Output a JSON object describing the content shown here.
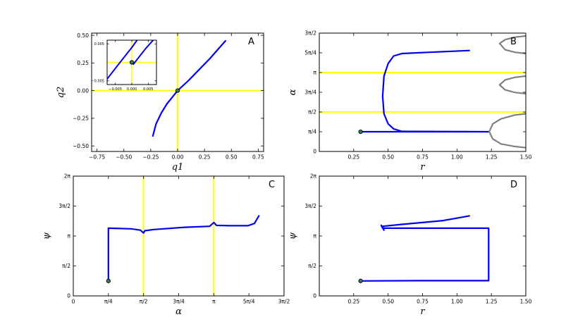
{
  "chart_data": [
    {
      "type": "line",
      "panel_label": "A",
      "xlabel": "q1",
      "ylabel": "q2",
      "xlim": [
        -0.8,
        0.8
      ],
      "ylim": [
        -0.55,
        0.52
      ],
      "xticks": [
        -0.75,
        -0.5,
        -0.25,
        0.0,
        0.25,
        0.5,
        0.75
      ],
      "xtick_labels": [
        "−0.75",
        "−0.50",
        "−0.25",
        "0.00",
        "0.25",
        "0.50",
        "0.75"
      ],
      "yticks": [
        -0.5,
        -0.25,
        0.0,
        0.25,
        0.5
      ],
      "ytick_labels": [
        "−0.50",
        "−0.25",
        "0.00",
        "0.25",
        "0.50"
      ],
      "hlines": [
        0.0
      ],
      "vlines": [
        0.0
      ],
      "series": [
        {
          "color": "#0000ee",
          "points": [
            [
              -0.23,
              -0.41
            ],
            [
              -0.2,
              -0.3
            ],
            [
              -0.15,
              -0.2
            ],
            [
              -0.1,
              -0.12
            ],
            [
              -0.05,
              -0.06
            ],
            [
              0.0,
              0.0
            ],
            [
              0.1,
              0.09
            ],
            [
              0.2,
              0.19
            ],
            [
              0.3,
              0.29
            ],
            [
              0.445,
              0.45
            ]
          ]
        }
      ],
      "start_marker": [
        0.0,
        0.0
      ],
      "inset": {
        "xlim": [
          -0.0075,
          0.0075
        ],
        "ylim": [
          -0.006,
          0.006
        ],
        "xticks": [
          -0.005,
          0.0,
          0.005
        ],
        "xtick_labels": [
          "−0.005",
          "0.000",
          "0.005"
        ],
        "yticks": [
          -0.005,
          0.005
        ],
        "ytick_labels": [
          "−0.005",
          "0.005"
        ],
        "hlines": [
          0.0
        ],
        "vlines": [
          0.0
        ],
        "series": [
          {
            "color": "#0000ee",
            "points": [
              [
                -0.0075,
                -0.0045
              ],
              [
                -0.004,
                -0.0005
              ],
              [
                0.0,
                0.004
              ],
              [
                0.0016,
                0.006
              ]
            ]
          },
          {
            "color": "#0000ee",
            "points": [
              [
                0.0005,
                -0.0005
              ],
              [
                0.004,
                0.0035
              ],
              [
                0.0065,
                0.006
              ]
            ]
          }
        ],
        "start_marker": [
          0.0,
          0.0
        ]
      }
    },
    {
      "type": "line",
      "panel_label": "B",
      "xlabel": "r",
      "ylabel": "α",
      "xlim": [
        0.0,
        1.5
      ],
      "ylim": [
        0.0,
        4.712
      ],
      "xticks": [
        0.25,
        0.5,
        0.75,
        1.0,
        1.25,
        1.5
      ],
      "xtick_labels": [
        "0.25",
        "0.50",
        "0.75",
        "1.00",
        "1.25",
        "1.50"
      ],
      "yticks": [
        0.0,
        0.785,
        1.571,
        2.356,
        3.142,
        3.927,
        4.712
      ],
      "ytick_labels": [
        "0",
        "π/4",
        "π/2",
        "3π/4",
        "π",
        "5π/4",
        "3π/2"
      ],
      "hlines": [
        1.571,
        3.142
      ],
      "vlines": [],
      "series": [
        {
          "color": "#0000ee",
          "points": [
            [
              0.3,
              0.785
            ],
            [
              0.7,
              0.785
            ],
            [
              1.23,
              0.785
            ],
            [
              0.6,
              0.8
            ],
            [
              0.54,
              0.9
            ],
            [
              0.5,
              1.1
            ],
            [
              0.47,
              1.5
            ],
            [
              0.46,
              2.2
            ],
            [
              0.47,
              3.0
            ],
            [
              0.5,
              3.5
            ],
            [
              0.54,
              3.8
            ],
            [
              0.6,
              3.9
            ],
            [
              0.8,
              3.95
            ],
            [
              1.09,
              4.02
            ]
          ]
        },
        {
          "color": "#808080",
          "points": [
            [
              1.5,
              4.6
            ],
            [
              1.42,
              4.55
            ],
            [
              1.35,
              4.45
            ],
            [
              1.31,
              4.3
            ],
            [
              1.35,
              4.05
            ],
            [
              1.42,
              3.95
            ],
            [
              1.5,
              3.9
            ]
          ]
        },
        {
          "color": "#808080",
          "points": [
            [
              1.5,
              3.0
            ],
            [
              1.42,
              2.95
            ],
            [
              1.35,
              2.85
            ],
            [
              1.31,
              2.65
            ],
            [
              1.35,
              2.45
            ],
            [
              1.42,
              2.35
            ],
            [
              1.5,
              2.3
            ]
          ]
        },
        {
          "color": "#808080",
          "points": [
            [
              1.5,
              1.5
            ],
            [
              1.42,
              1.45
            ],
            [
              1.32,
              1.3
            ],
            [
              1.26,
              1.1
            ],
            [
              1.235,
              0.785
            ],
            [
              1.26,
              0.5
            ],
            [
              1.32,
              0.3
            ],
            [
              1.42,
              0.2
            ],
            [
              1.5,
              0.15
            ]
          ]
        }
      ],
      "start_marker": [
        0.3,
        0.785
      ]
    },
    {
      "type": "line",
      "panel_label": "C",
      "xlabel": "α",
      "ylabel": "ψ",
      "xlim": [
        0.0,
        4.712
      ],
      "ylim": [
        0.0,
        6.283
      ],
      "xticks": [
        0.0,
        0.785,
        1.571,
        2.356,
        3.142,
        3.927,
        4.712
      ],
      "xtick_labels": [
        "0",
        "π/4",
        "π/2",
        "3π/4",
        "π",
        "5π/4",
        "3π/2"
      ],
      "yticks": [
        0.0,
        1.571,
        3.142,
        4.712,
        6.283
      ],
      "ytick_labels": [
        "0",
        "π/2",
        "π",
        "3π/2",
        "2π"
      ],
      "hlines": [],
      "vlines": [
        1.571,
        3.142
      ],
      "series": [
        {
          "color": "#0000ee",
          "points": [
            [
              0.785,
              0.785
            ],
            [
              0.785,
              3.2
            ],
            [
              0.785,
              3.55
            ],
            [
              1.3,
              3.52
            ],
            [
              1.5,
              3.45
            ],
            [
              1.571,
              3.3
            ],
            [
              1.6,
              3.42
            ],
            [
              1.8,
              3.48
            ],
            [
              2.5,
              3.6
            ],
            [
              3.05,
              3.65
            ],
            [
              3.142,
              3.85
            ],
            [
              3.2,
              3.7
            ],
            [
              3.5,
              3.68
            ],
            [
              3.9,
              3.68
            ],
            [
              4.05,
              3.8
            ],
            [
              4.15,
              4.2
            ]
          ]
        }
      ],
      "start_marker": [
        0.785,
        0.785
      ]
    },
    {
      "type": "line",
      "panel_label": "D",
      "xlabel": "r",
      "ylabel": "ψ",
      "xlim": [
        0.0,
        1.5
      ],
      "ylim": [
        0.0,
        6.283
      ],
      "xticks": [
        0.25,
        0.5,
        0.75,
        1.0,
        1.25,
        1.5
      ],
      "xtick_labels": [
        "0.25",
        "0.50",
        "0.75",
        "1.00",
        "1.25",
        "1.50"
      ],
      "yticks": [
        0.0,
        1.571,
        3.142,
        4.712,
        6.283
      ],
      "ytick_labels": [
        "0",
        "π/2",
        "π",
        "3π/2",
        "2π"
      ],
      "hlines": [],
      "vlines": [],
      "series": [
        {
          "color": "#0000ee",
          "points": [
            [
              0.3,
              0.785
            ],
            [
              0.7,
              0.8
            ],
            [
              1.23,
              0.8
            ],
            [
              1.23,
              3.55
            ],
            [
              0.8,
              3.55
            ],
            [
              0.46,
              3.55
            ],
            [
              0.45,
              3.7
            ],
            [
              0.47,
              3.45
            ],
            [
              0.46,
              3.65
            ],
            [
              0.6,
              3.75
            ],
            [
              0.9,
              3.95
            ],
            [
              1.09,
              4.2
            ]
          ]
        }
      ],
      "start_marker": [
        0.3,
        0.785
      ]
    }
  ]
}
